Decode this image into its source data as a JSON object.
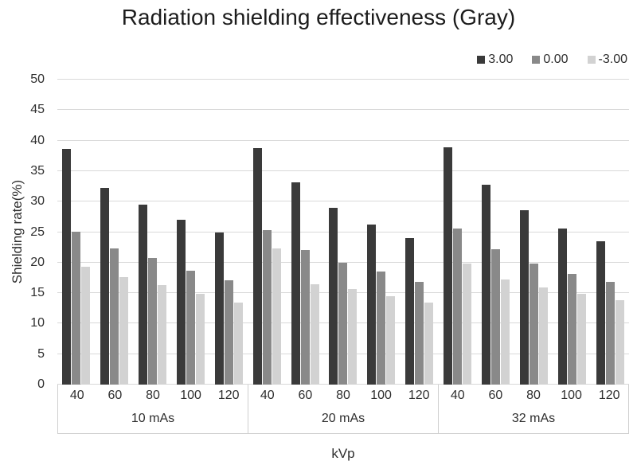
{
  "title": "Radiation shielding effectiveness (Gray)",
  "axes": {
    "ylabel": "Shielding rate(%)",
    "xlabel": "kVp",
    "yticks": [
      0,
      5,
      10,
      15,
      20,
      25,
      30,
      35,
      40,
      45,
      50
    ]
  },
  "colors": {
    "series_dark": "#3a3a3a",
    "series_mid": "#898989",
    "series_light": "#d2d2d2",
    "gridline": "#d9d9d9",
    "axis_border": "#cfcfcf",
    "text": "#2e2e2e"
  },
  "chart_data": {
    "type": "bar",
    "title": "Radiation shielding effectiveness (Gray)",
    "xlabel": "kVp",
    "ylabel": "Shielding rate(%)",
    "ylim": [
      0,
      50
    ],
    "ytick_step": 5,
    "grid": true,
    "legend_position": "top-right",
    "section_labels": [
      "10 mAs",
      "20 mAs",
      "32 mAs"
    ],
    "categories": [
      "40",
      "60",
      "80",
      "100",
      "120"
    ],
    "series": [
      {
        "name": "3.00",
        "color": "#3a3a3a",
        "values": [
          [
            38.6,
            32.3,
            29.5,
            27.0,
            25.0
          ],
          [
            38.8,
            33.1,
            29.0,
            26.3,
            24.0
          ],
          [
            38.9,
            32.8,
            28.6,
            25.6,
            23.5
          ]
        ]
      },
      {
        "name": "0.00",
        "color": "#898989",
        "values": [
          [
            25.1,
            22.3,
            20.7,
            18.7,
            17.1
          ],
          [
            25.3,
            22.0,
            20.0,
            18.5,
            16.8
          ],
          [
            25.6,
            22.2,
            19.9,
            18.2,
            16.8
          ]
        ]
      },
      {
        "name": "-3.00",
        "color": "#d2d2d2",
        "values": [
          [
            19.3,
            17.6,
            16.3,
            14.9,
            13.5
          ],
          [
            22.3,
            16.5,
            15.7,
            14.5,
            13.4
          ],
          [
            19.8,
            17.2,
            15.9,
            14.9,
            13.8
          ]
        ]
      }
    ]
  }
}
